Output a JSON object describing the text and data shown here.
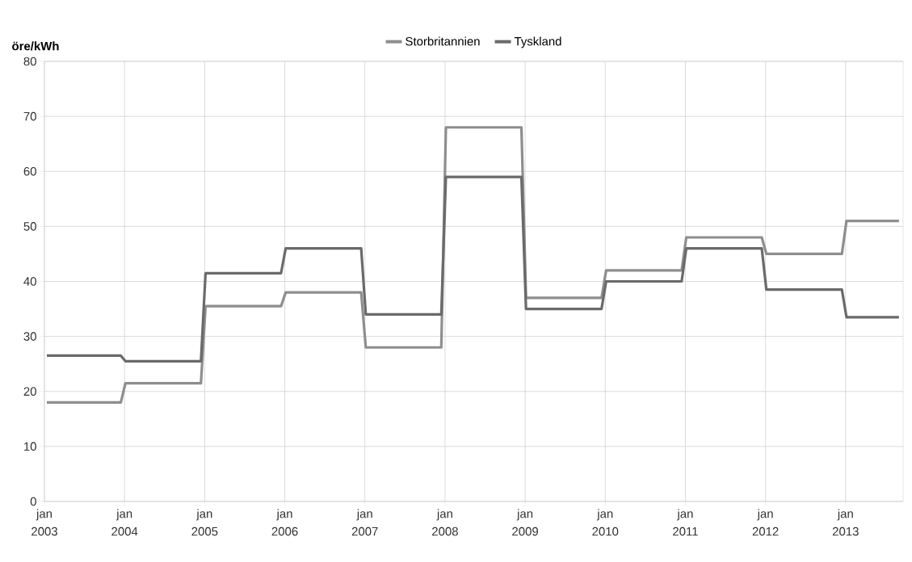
{
  "chart_data": {
    "type": "line",
    "ylabel": "öre/kWh",
    "x": [
      "2003-01-12",
      "2003-12-15",
      "2004-01-05",
      "2004-12-15",
      "2005-01-05",
      "2005-12-15",
      "2006-01-05",
      "2006-12-15",
      "2007-01-05",
      "2007-12-15",
      "2008-01-05",
      "2008-12-15",
      "2009-01-05",
      "2009-12-15",
      "2010-01-05",
      "2010-12-15",
      "2011-01-05",
      "2011-12-15",
      "2012-01-05",
      "2012-12-15",
      "2013-01-05",
      "2013-09-01"
    ],
    "series": [
      {
        "name": "Storbritannien",
        "color": "#8e8e8e",
        "values": [
          18,
          18,
          21.5,
          21.5,
          35.5,
          35.5,
          38,
          38,
          28,
          28,
          68,
          68,
          37,
          37,
          42,
          42,
          48,
          48,
          45,
          45,
          51,
          51
        ]
      },
      {
        "name": "Tyskland",
        "color": "#6a6a6a",
        "values": [
          26.5,
          26.5,
          25.5,
          25.5,
          41.5,
          41.5,
          46,
          46,
          34,
          34,
          59,
          59,
          35,
          35,
          40,
          40,
          46,
          46,
          38.5,
          38.5,
          33.5,
          33.5
        ]
      }
    ],
    "xlim": [
      "2003-01-01",
      "2013-09-20"
    ],
    "ylim": [
      0,
      80
    ],
    "xticks": [
      {
        "value": "2003-01-01",
        "label": "jan 2003"
      },
      {
        "value": "2004-01-01",
        "label": "jan 2004"
      },
      {
        "value": "2005-01-01",
        "label": "jan 2005"
      },
      {
        "value": "2006-01-01",
        "label": "jan 2006"
      },
      {
        "value": "2007-01-01",
        "label": "jan 2007"
      },
      {
        "value": "2008-01-01",
        "label": "jan 2008"
      },
      {
        "value": "2009-01-01",
        "label": "jan 2009"
      },
      {
        "value": "2010-01-01",
        "label": "jan 2010"
      },
      {
        "value": "2011-01-01",
        "label": "jan 2011"
      },
      {
        "value": "2012-01-01",
        "label": "jan 2012"
      },
      {
        "value": "2013-01-01",
        "label": "jan 2013"
      }
    ],
    "yticks": [
      0,
      10,
      20,
      30,
      40,
      50,
      60,
      70,
      80
    ],
    "grid": true,
    "legend": "top"
  }
}
